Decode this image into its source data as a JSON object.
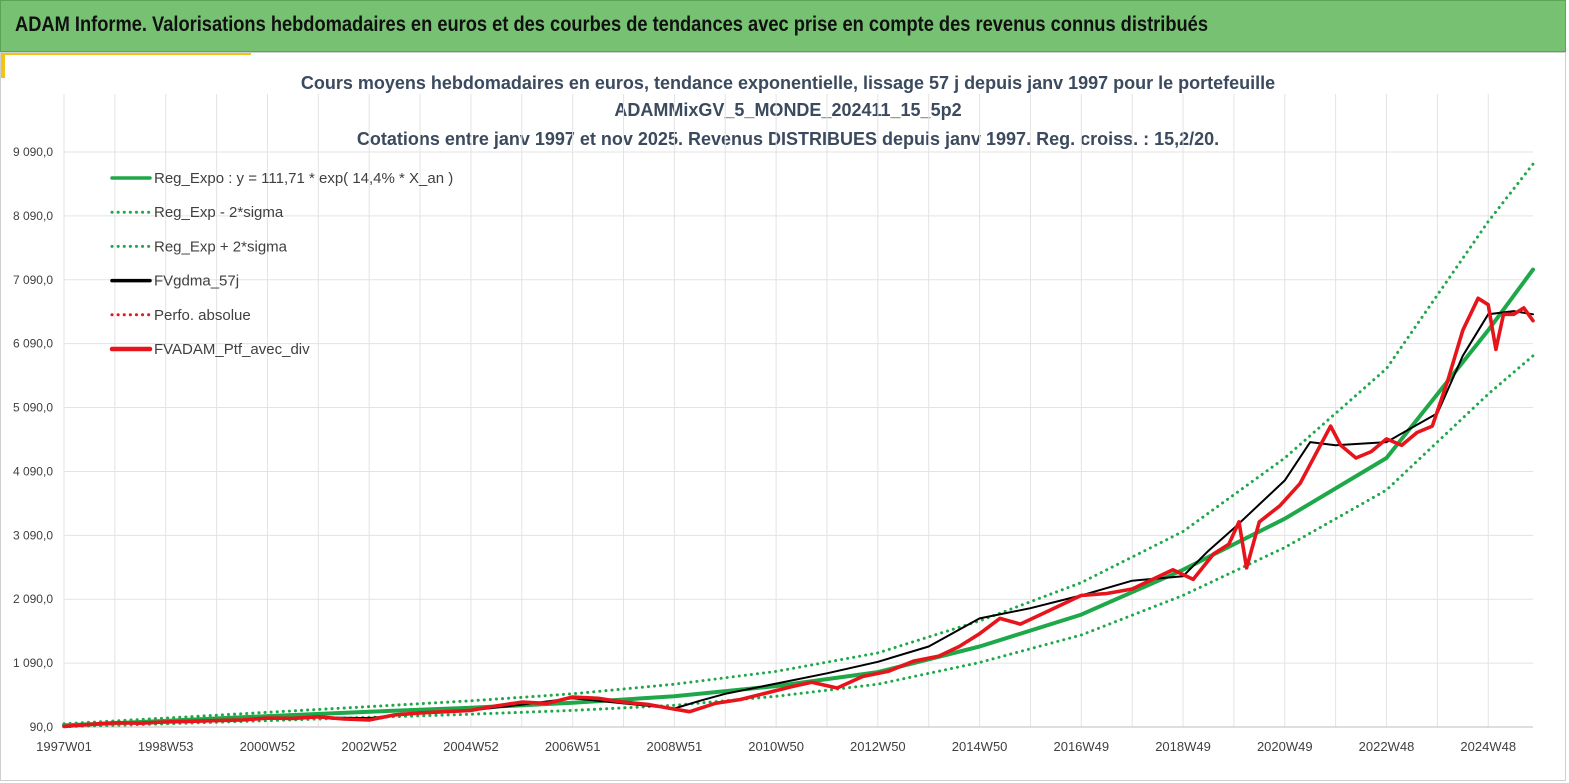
{
  "header": {
    "title": "ADAM Informe. Valorisations hebdomadaires en euros et des courbes de tendances avec prise en compte des revenus connus distribués"
  },
  "colors": {
    "header_bg": "#76c272",
    "accent": "#f2c318",
    "trend": "#1fa84a",
    "black": "#000000",
    "red": "#e8141b"
  },
  "chart_data": {
    "type": "line",
    "title": [
      "Cours moyens hebdomadaires  en euros, tendance exponentielle, lissage 57 j depuis janv 1997 pour le portefeuille",
      "ADAMMixGV_5_MONDE_202411_15_5p2",
      "Cotations  entre janv 1997 et nov 2025. Revenus DISTRIBUES depuis janv 1997. Reg. croiss. : 15,2/20."
    ],
    "xlabel": "",
    "ylabel": "",
    "xlim": [
      1997.0,
      2025.88
    ],
    "ylim": [
      90,
      9090
    ],
    "y_ticks": [
      90,
      1090,
      2090,
      3090,
      4090,
      5090,
      6090,
      7090,
      8090,
      9090
    ],
    "y_tick_labels": [
      "90,0",
      "1 090,0",
      "2 090,0",
      "3 090,0",
      "4 090,0",
      "5 090,0",
      "6 090,0",
      "7 090,0",
      "8 090,0",
      "9 090,0"
    ],
    "x_ticks": [
      1997.0,
      1999.0,
      2001.0,
      2003.0,
      2005.0,
      2007.0,
      2009.0,
      2011.0,
      2013.0,
      2015.0,
      2017.0,
      2019.0,
      2021.0,
      2023.0,
      2025.0
    ],
    "x_tick_labels": [
      "1997W01",
      "1998W53",
      "2000W52",
      "2002W52",
      "2004W52",
      "2006W51",
      "2008W51",
      "2010W50",
      "2012W50",
      "2014W50",
      "2016W49",
      "2018W49",
      "2020W49",
      "2022W48",
      "2024W48"
    ],
    "grid": "vertical-and-horizontal",
    "legend_placement": "top-left",
    "legend": [
      {
        "key": "reg_expo",
        "label": "Reg_Expo : y = 111,71 * exp( 14,4% *  X_an )",
        "color": "#1fa84a",
        "style": "solid"
      },
      {
        "key": "reg_exp_minus",
        "label": "Reg_Exp - 2*sigma",
        "color": "#1fa84a",
        "style": "dotted"
      },
      {
        "key": "reg_exp_plus",
        "label": "Reg_Exp + 2*sigma",
        "color": "#1fa84a",
        "style": "dotted"
      },
      {
        "key": "fvgdma",
        "label": "FVgdma_57j",
        "color": "#000000",
        "style": "solid"
      },
      {
        "key": "perfo",
        "label": "Perfo. absolue",
        "color": "#e8141b",
        "style": "dotted"
      },
      {
        "key": "fvadam",
        "label": "FVADAM_Ptf_avec_div",
        "color": "#e8141b",
        "style": "solid-thick"
      }
    ],
    "series": [
      {
        "key": "reg_expo",
        "name": "Reg_Expo : y = 111,71 * exp( 14,4% *  X_an )",
        "x": [
          1997.0,
          1999.0,
          2001.0,
          2003.0,
          2005.0,
          2007.0,
          2009.0,
          2011.0,
          2013.0,
          2015.0,
          2017.0,
          2019.0,
          2021.0,
          2023.0,
          2025.0,
          2025.88
        ],
        "values": [
          115,
          185,
          260,
          330,
          390,
          470,
          570,
          730,
          950,
          1350,
          1850,
          2550,
          3350,
          4300,
          6300,
          7250
        ]
      },
      {
        "key": "reg_exp_minus",
        "name": "Reg_Exp - 2*sigma",
        "x": [
          1997.0,
          1999.0,
          2001.0,
          2003.0,
          2005.0,
          2007.0,
          2009.0,
          2011.0,
          2013.0,
          2015.0,
          2017.0,
          2019.0,
          2021.0,
          2023.0,
          2025.0,
          2025.88
        ],
        "values": [
          95,
          140,
          190,
          240,
          290,
          350,
          430,
          570,
          760,
          1100,
          1530,
          2150,
          2900,
          3800,
          5300,
          5900
        ]
      },
      {
        "key": "reg_exp_plus",
        "name": "Reg_Exp + 2*sigma",
        "x": [
          1997.0,
          1999.0,
          2001.0,
          2003.0,
          2005.0,
          2007.0,
          2009.0,
          2011.0,
          2013.0,
          2015.0,
          2017.0,
          2019.0,
          2021.0,
          2023.0,
          2025.0,
          2025.88
        ],
        "values": [
          140,
          230,
          320,
          410,
          500,
          610,
          760,
          960,
          1250,
          1750,
          2350,
          3150,
          4300,
          5700,
          8000,
          8900
        ]
      },
      {
        "key": "fvgdma",
        "name": "FVgdma_57j",
        "x": [
          1997.0,
          1998.0,
          1999.0,
          2000.0,
          2001.0,
          2002.0,
          2003.0,
          2004.0,
          2005.0,
          2006.0,
          2007.0,
          2008.0,
          2009.0,
          2009.5,
          2010.0,
          2011.0,
          2012.0,
          2013.0,
          2014.0,
          2015.0,
          2016.0,
          2017.0,
          2018.0,
          2019.0,
          2019.5,
          2020.0,
          2021.0,
          2021.5,
          2022.0,
          2023.0,
          2024.0,
          2024.5,
          2025.0,
          2025.5,
          2025.88
        ],
        "values": [
          100,
          150,
          170,
          195,
          220,
          240,
          230,
          310,
          350,
          440,
          540,
          460,
          380,
          500,
          610,
          770,
          930,
          1110,
          1350,
          1790,
          1950,
          2150,
          2380,
          2450,
          2850,
          3200,
          3950,
          4550,
          4500,
          4550,
          5000,
          5900,
          6550,
          6600,
          6550
        ]
      },
      {
        "key": "fvadam",
        "name": "FVADAM_Ptf_avec_div",
        "x": [
          1997.0,
          1997.5,
          1998.0,
          1998.5,
          1999.0,
          1999.5,
          2000.0,
          2000.5,
          2001.0,
          2001.5,
          2002.0,
          2002.5,
          2003.0,
          2003.5,
          2004.0,
          2004.5,
          2005.0,
          2005.5,
          2006.0,
          2006.5,
          2007.0,
          2007.5,
          2008.0,
          2008.5,
          2009.0,
          2009.3,
          2009.8,
          2010.3,
          2010.8,
          2011.3,
          2011.7,
          2012.2,
          2012.7,
          2013.2,
          2013.7,
          2014.2,
          2014.6,
          2015.0,
          2015.4,
          2015.8,
          2016.2,
          2016.6,
          2017.0,
          2017.5,
          2018.0,
          2018.4,
          2018.8,
          2019.2,
          2019.6,
          2019.9,
          2020.1,
          2020.25,
          2020.5,
          2020.9,
          2021.3,
          2021.6,
          2021.9,
          2022.1,
          2022.4,
          2022.7,
          2023.0,
          2023.3,
          2023.6,
          2023.9,
          2024.2,
          2024.5,
          2024.8,
          2025.0,
          2025.15,
          2025.3,
          2025.5,
          2025.7,
          2025.88
        ],
        "values": [
          100,
          130,
          155,
          150,
          170,
          180,
          190,
          200,
          230,
          225,
          250,
          215,
          200,
          280,
          310,
          330,
          350,
          420,
          480,
          460,
          560,
          540,
          480,
          440,
          370,
          330,
          460,
          520,
          620,
          720,
          790,
          700,
          880,
          960,
          1120,
          1200,
          1350,
          1550,
          1790,
          1700,
          1850,
          2000,
          2150,
          2180,
          2250,
          2400,
          2550,
          2400,
          2800,
          2950,
          3300,
          2580,
          3300,
          3550,
          3900,
          4350,
          4800,
          4500,
          4300,
          4400,
          4600,
          4500,
          4700,
          4800,
          5500,
          6300,
          6800,
          6700,
          6000,
          6550,
          6550,
          6650,
          6450
        ]
      }
    ]
  }
}
